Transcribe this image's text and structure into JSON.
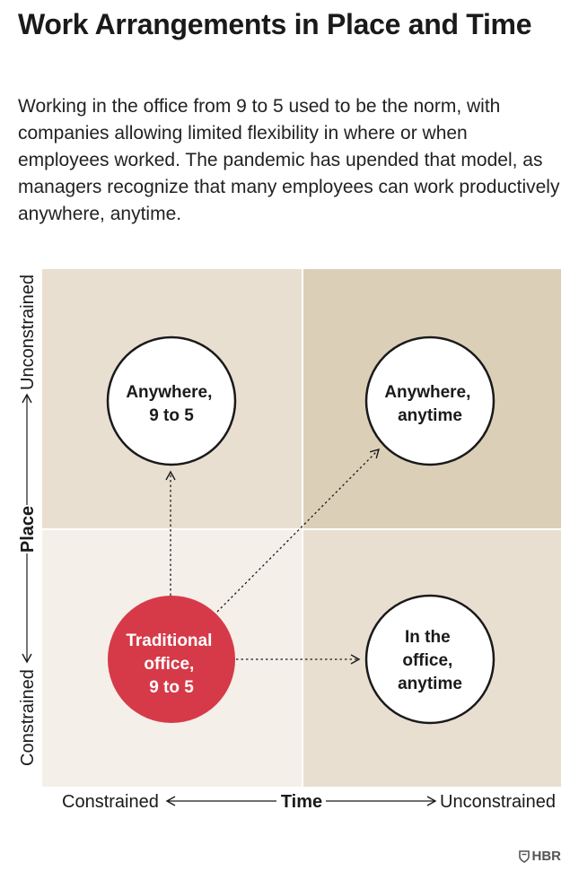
{
  "title": "Work Arrangements in Place and Time",
  "intro": "Working in the office from 9 to 5 used to be the norm, with companies allowing limited flexibility in where or when employees worked. The pandemic has upended that model, as managers recognize that many employees can work productively anywhere, anytime.",
  "axes": {
    "x_title": "Time",
    "x_low": "Constrained",
    "x_high": "Unconstrained",
    "y_title": "Place",
    "y_low": "Constrained",
    "y_high": "Unconstrained"
  },
  "quadrants": {
    "top_left": {
      "color": "#e9dfd1",
      "lines": [
        "Anywhere,",
        "9 to 5"
      ]
    },
    "top_right": {
      "color": "#dccfb8",
      "lines": [
        "Anywhere,",
        "anytime"
      ]
    },
    "bottom_left": {
      "color": "#f4efe8",
      "lines": [
        "Traditional",
        "office,",
        "9 to 5"
      ]
    },
    "bottom_right": {
      "color": "#e9dfd1",
      "lines": [
        "In the",
        "office,",
        "anytime"
      ]
    }
  },
  "colors": {
    "highlight": "#d63a48",
    "circle_fill": "#ffffff",
    "ink": "#1a1a1a"
  },
  "logo": {
    "text": "HBR",
    "icon": "shield-icon"
  }
}
